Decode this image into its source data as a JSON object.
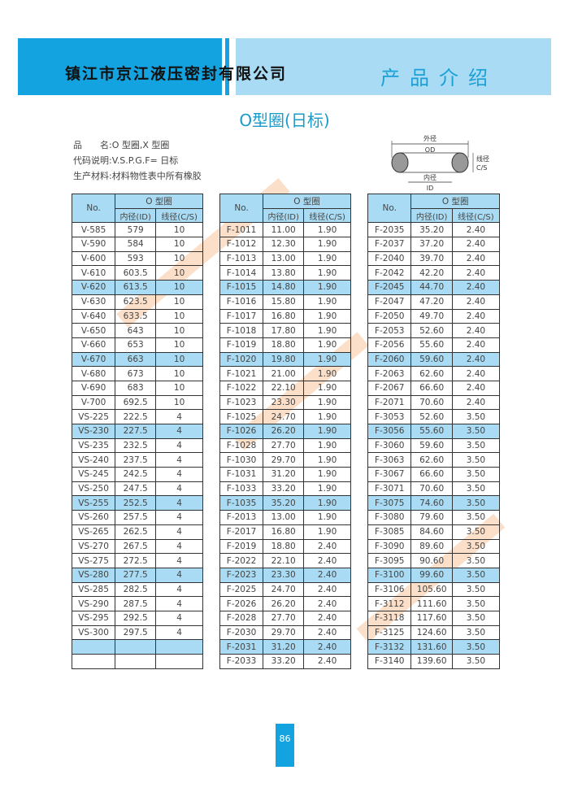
{
  "header": {
    "company": "镇江市京江液压密封有限公司",
    "section": "产品介绍"
  },
  "title": "O型圈(日标)",
  "info": [
    "品　　名:O 型圈,X 型圈",
    "代码说明:V.S.P.G.F= 日标",
    "生产材料:材料物性表中所有橡胶"
  ],
  "diagram": {
    "od_cn": "外径",
    "od": "OD",
    "cs_cn": "线径",
    "cs": "C/S",
    "id_cn": "内径",
    "id": "ID"
  },
  "table_headers": {
    "no": "No.",
    "group": "O 型圈",
    "id": "内径(ID)",
    "cs": "线径(C/S)"
  },
  "tables": [
    [
      [
        "V-585",
        "579",
        "10"
      ],
      [
        "V-590",
        "584",
        "10"
      ],
      [
        "V-600",
        "593",
        "10"
      ],
      [
        "V-610",
        "603.5",
        "10"
      ],
      [
        "V-620",
        "613.5",
        "10"
      ],
      [
        "V-630",
        "623.5",
        "10"
      ],
      [
        "V-640",
        "633.5",
        "10"
      ],
      [
        "V-650",
        "643",
        "10"
      ],
      [
        "V-660",
        "653",
        "10"
      ],
      [
        "V-670",
        "663",
        "10"
      ],
      [
        "V-680",
        "673",
        "10"
      ],
      [
        "V-690",
        "683",
        "10"
      ],
      [
        "V-700",
        "692.5",
        "10"
      ],
      [
        "VS-225",
        "222.5",
        "4"
      ],
      [
        "VS-230",
        "227.5",
        "4"
      ],
      [
        "VS-235",
        "232.5",
        "4"
      ],
      [
        "VS-240",
        "237.5",
        "4"
      ],
      [
        "VS-245",
        "242.5",
        "4"
      ],
      [
        "VS-250",
        "247.5",
        "4"
      ],
      [
        "VS-255",
        "252.5",
        "4"
      ],
      [
        "VS-260",
        "257.5",
        "4"
      ],
      [
        "VS-265",
        "262.5",
        "4"
      ],
      [
        "VS-270",
        "267.5",
        "4"
      ],
      [
        "VS-275",
        "272.5",
        "4"
      ],
      [
        "VS-280",
        "277.5",
        "4"
      ],
      [
        "VS-285",
        "282.5",
        "4"
      ],
      [
        "VS-290",
        "287.5",
        "4"
      ],
      [
        "VS-295",
        "292.5",
        "4"
      ],
      [
        "VS-300",
        "297.5",
        "4"
      ],
      [
        "",
        "",
        ""
      ],
      [
        "",
        "",
        ""
      ]
    ],
    [
      [
        "F-1011",
        "11.00",
        "1.90"
      ],
      [
        "F-1012",
        "12.30",
        "1.90"
      ],
      [
        "F-1013",
        "13.00",
        "1.90"
      ],
      [
        "F-1014",
        "13.80",
        "1.90"
      ],
      [
        "F-1015",
        "14.80",
        "1.90"
      ],
      [
        "F-1016",
        "15.80",
        "1.90"
      ],
      [
        "F-1017",
        "16.80",
        "1.90"
      ],
      [
        "F-1018",
        "17.80",
        "1.90"
      ],
      [
        "F-1019",
        "18.80",
        "1.90"
      ],
      [
        "F-1020",
        "19.80",
        "1.90"
      ],
      [
        "F-1021",
        "21.00",
        "1.90"
      ],
      [
        "F-1022",
        "22.10",
        "1.90"
      ],
      [
        "F-1023",
        "23.30",
        "1.90"
      ],
      [
        "F-1025",
        "24.70",
        "1.90"
      ],
      [
        "F-1026",
        "26.20",
        "1.90"
      ],
      [
        "F-1028",
        "27.70",
        "1.90"
      ],
      [
        "F-1030",
        "29.70",
        "1.90"
      ],
      [
        "F-1031",
        "31.20",
        "1.90"
      ],
      [
        "F-1033",
        "33.20",
        "1.90"
      ],
      [
        "F-1035",
        "35.20",
        "1.90"
      ],
      [
        "F-2013",
        "13.00",
        "1.90"
      ],
      [
        "F-2017",
        "16.80",
        "1.90"
      ],
      [
        "F-2019",
        "18.80",
        "2.40"
      ],
      [
        "F-2022",
        "22.10",
        "2.40"
      ],
      [
        "F-2023",
        "23.30",
        "2.40"
      ],
      [
        "F-2025",
        "24.70",
        "2.40"
      ],
      [
        "F-2026",
        "26.20",
        "2.40"
      ],
      [
        "F-2028",
        "27.70",
        "2.40"
      ],
      [
        "F-2030",
        "29.70",
        "2.40"
      ],
      [
        "F-2031",
        "31.20",
        "2.40"
      ],
      [
        "F-2033",
        "33.20",
        "2.40"
      ]
    ],
    [
      [
        "F-2035",
        "35.20",
        "2.40"
      ],
      [
        "F-2037",
        "37.20",
        "2.40"
      ],
      [
        "F-2040",
        "39.70",
        "2.40"
      ],
      [
        "F-2042",
        "42.20",
        "2.40"
      ],
      [
        "F-2045",
        "44.70",
        "2.40"
      ],
      [
        "F-2047",
        "47.20",
        "2.40"
      ],
      [
        "F-2050",
        "49.70",
        "2.40"
      ],
      [
        "F-2053",
        "52.60",
        "2.40"
      ],
      [
        "F-2056",
        "55.60",
        "2.40"
      ],
      [
        "F-2060",
        "59.60",
        "2.40"
      ],
      [
        "F-2063",
        "62.60",
        "2.40"
      ],
      [
        "F-2067",
        "66.60",
        "2.40"
      ],
      [
        "F-2071",
        "70.60",
        "2.40"
      ],
      [
        "F-3053",
        "52.60",
        "3.50"
      ],
      [
        "F-3056",
        "55.60",
        "3.50"
      ],
      [
        "F-3060",
        "59.60",
        "3.50"
      ],
      [
        "F-3063",
        "62.60",
        "3.50"
      ],
      [
        "F-3067",
        "66.60",
        "3.50"
      ],
      [
        "F-3071",
        "70.60",
        "3.50"
      ],
      [
        "F-3075",
        "74.60",
        "3.50"
      ],
      [
        "F-3080",
        "79.60",
        "3.50"
      ],
      [
        "F-3085",
        "84.60",
        "3.50"
      ],
      [
        "F-3090",
        "89.60",
        "3.50"
      ],
      [
        "F-3095",
        "90.60",
        "3.50"
      ],
      [
        "F-3100",
        "99.60",
        "3.50"
      ],
      [
        "F-3106",
        "105.60",
        "3.50"
      ],
      [
        "F-3112",
        "111.60",
        "3.50"
      ],
      [
        "F-3118",
        "117.60",
        "3.50"
      ],
      [
        "F-3125",
        "124.60",
        "3.50"
      ],
      [
        "F-3132",
        "131.60",
        "3.50"
      ],
      [
        "F-3140",
        "139.60",
        "3.50"
      ]
    ]
  ],
  "page_number": "86",
  "colors": {
    "brand_blue": "#13a3e0",
    "light_blue": "#a9dcf4",
    "title_cyan": "#1b9ac9",
    "watermark": "#f58c3c"
  }
}
